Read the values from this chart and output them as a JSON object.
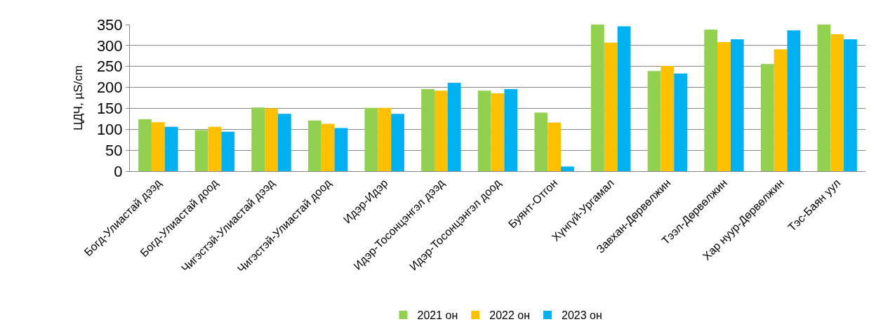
{
  "chart_data": {
    "type": "bar",
    "ylabel": "ЦДЧ, µS/cm",
    "categories": [
      "Богд-Улиастай дээд",
      "Богд-Улиастай доод",
      "Чигэстэй-Улиастай дээд",
      "Чигэстэй-Улиастай доод",
      "Идэр-Идэр",
      "Идэр-Тосонцэнгэл дээд",
      "Идэр-Тосонцэнгэл доод",
      "Буянт-Отгон",
      "Хүнгүй-Ургамал",
      "Завхан-Дөрвөлжин",
      "Тээл-Дөрвөлжин",
      "Хар нуур-Дөрвөлжин",
      "Тэс-Баян уул"
    ],
    "series": [
      {
        "name": "2021 он",
        "color": "#92d050",
        "values": [
          124,
          98,
          152,
          121,
          151,
          196,
          192,
          140,
          350,
          239,
          338,
          256,
          350
        ]
      },
      {
        "name": "2022 он",
        "color": "#ffc000",
        "values": [
          117,
          106,
          150,
          113,
          151,
          192,
          186,
          116,
          307,
          251,
          308,
          291,
          327
        ]
      },
      {
        "name": "2023 он",
        "color": "#00b0f0",
        "values": [
          106,
          94,
          137,
          103,
          137,
          211,
          196,
          11,
          346,
          233,
          315,
          336,
          315
        ]
      }
    ],
    "ylim": [
      0,
      350
    ],
    "yticks": [
      0,
      50,
      100,
      150,
      200,
      250,
      300,
      350
    ],
    "grid": "y",
    "legend": "bottom"
  }
}
